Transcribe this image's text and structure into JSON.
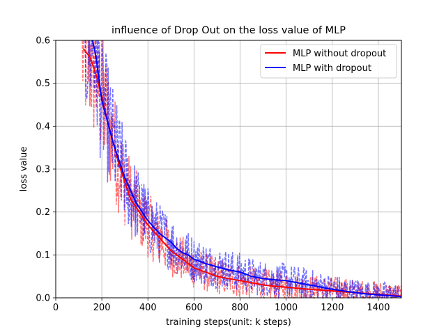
{
  "chart_data": {
    "type": "line",
    "title": "influence of Drop Out on the loss value of MLP",
    "xlabel": "training steps(unit: k steps)",
    "ylabel": "loss value",
    "xlim": [
      0,
      1500
    ],
    "ylim": [
      0.0,
      0.6
    ],
    "x_ticks": [
      "0",
      "200",
      "400",
      "600",
      "800",
      "1000",
      "1200",
      "1400"
    ],
    "y_ticks": [
      "0.0",
      "0.1",
      "0.2",
      "0.3",
      "0.4",
      "0.5",
      "0.6"
    ],
    "grid": true,
    "legend_position": "top-right",
    "series": [
      {
        "name": "MLP without dropout",
        "color": "#ff0000",
        "x": [
          120,
          150,
          175,
          200,
          225,
          250,
          275,
          300,
          325,
          350,
          375,
          400,
          425,
          450,
          475,
          500,
          525,
          550,
          575,
          600,
          650,
          700,
          750,
          800,
          850,
          900,
          950,
          1000,
          1050,
          1100,
          1150,
          1200,
          1250,
          1300,
          1350,
          1400,
          1450,
          1500
        ],
        "y": [
          0.58,
          0.56,
          0.52,
          0.47,
          0.41,
          0.36,
          0.31,
          0.27,
          0.23,
          0.21,
          0.19,
          0.17,
          0.155,
          0.14,
          0.125,
          0.11,
          0.1,
          0.09,
          0.08,
          0.07,
          0.06,
          0.05,
          0.045,
          0.04,
          0.035,
          0.03,
          0.027,
          0.025,
          0.022,
          0.02,
          0.018,
          0.016,
          0.014,
          0.012,
          0.01,
          0.008,
          0.006,
          0.004
        ]
      },
      {
        "name": "MLP with dropout",
        "color": "#0000ff",
        "x": [
          160,
          175,
          190,
          200,
          225,
          250,
          275,
          300,
          325,
          350,
          375,
          400,
          425,
          450,
          475,
          500,
          525,
          550,
          575,
          600,
          650,
          700,
          750,
          800,
          850,
          900,
          950,
          1000,
          1050,
          1100,
          1150,
          1200,
          1250,
          1300,
          1350,
          1400,
          1450,
          1500
        ],
        "y": [
          0.6,
          0.56,
          0.5,
          0.46,
          0.41,
          0.36,
          0.32,
          0.28,
          0.25,
          0.22,
          0.2,
          0.18,
          0.165,
          0.15,
          0.14,
          0.13,
          0.115,
          0.105,
          0.1,
          0.09,
          0.08,
          0.072,
          0.065,
          0.06,
          0.05,
          0.045,
          0.042,
          0.04,
          0.035,
          0.03,
          0.025,
          0.02,
          0.016,
          0.012,
          0.009,
          0.007,
          0.005,
          0.003
        ]
      }
    ]
  }
}
